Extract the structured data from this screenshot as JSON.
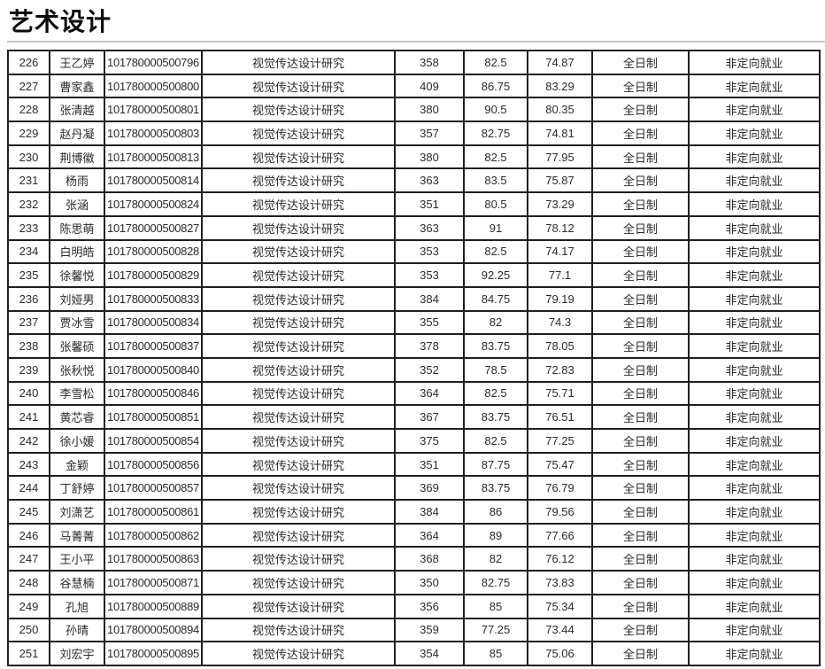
{
  "page": {
    "title": "艺术设计"
  },
  "colors": {
    "table_border": "#1f1f1f",
    "text": "#2b2b2b",
    "divider": "#c9c9c9",
    "background": "#ffffff"
  },
  "table": {
    "rows": [
      {
        "no": "226",
        "name": "王乙婷",
        "exam_id": "101780000500796",
        "direction": "视觉传达设计研究",
        "score1": "358",
        "score2": "82.5",
        "score3": "74.87",
        "study_mode": "全日制",
        "employment": "非定向就业"
      },
      {
        "no": "227",
        "name": "曹家鑫",
        "exam_id": "101780000500800",
        "direction": "视觉传达设计研究",
        "score1": "409",
        "score2": "86.75",
        "score3": "83.29",
        "study_mode": "全日制",
        "employment": "非定向就业"
      },
      {
        "no": "228",
        "name": "张清越",
        "exam_id": "101780000500801",
        "direction": "视觉传达设计研究",
        "score1": "380",
        "score2": "90.5",
        "score3": "80.35",
        "study_mode": "全日制",
        "employment": "非定向就业"
      },
      {
        "no": "229",
        "name": "赵丹凝",
        "exam_id": "101780000500803",
        "direction": "视觉传达设计研究",
        "score1": "357",
        "score2": "82.75",
        "score3": "74.81",
        "study_mode": "全日制",
        "employment": "非定向就业"
      },
      {
        "no": "230",
        "name": "荆博徽",
        "exam_id": "101780000500813",
        "direction": "视觉传达设计研究",
        "score1": "380",
        "score2": "82.5",
        "score3": "77.95",
        "study_mode": "全日制",
        "employment": "非定向就业"
      },
      {
        "no": "231",
        "name": "杨雨",
        "exam_id": "101780000500814",
        "direction": "视觉传达设计研究",
        "score1": "363",
        "score2": "83.5",
        "score3": "75.87",
        "study_mode": "全日制",
        "employment": "非定向就业"
      },
      {
        "no": "232",
        "name": "张涵",
        "exam_id": "101780000500824",
        "direction": "视觉传达设计研究",
        "score1": "351",
        "score2": "80.5",
        "score3": "73.29",
        "study_mode": "全日制",
        "employment": "非定向就业"
      },
      {
        "no": "233",
        "name": "陈思萌",
        "exam_id": "101780000500827",
        "direction": "视觉传达设计研究",
        "score1": "363",
        "score2": "91",
        "score3": "78.12",
        "study_mode": "全日制",
        "employment": "非定向就业"
      },
      {
        "no": "234",
        "name": "白明皓",
        "exam_id": "101780000500828",
        "direction": "视觉传达设计研究",
        "score1": "353",
        "score2": "82.5",
        "score3": "74.17",
        "study_mode": "全日制",
        "employment": "非定向就业"
      },
      {
        "no": "235",
        "name": "徐馨悦",
        "exam_id": "101780000500829",
        "direction": "视觉传达设计研究",
        "score1": "353",
        "score2": "92.25",
        "score3": "77.1",
        "study_mode": "全日制",
        "employment": "非定向就业"
      },
      {
        "no": "236",
        "name": "刘娅男",
        "exam_id": "101780000500833",
        "direction": "视觉传达设计研究",
        "score1": "384",
        "score2": "84.75",
        "score3": "79.19",
        "study_mode": "全日制",
        "employment": "非定向就业"
      },
      {
        "no": "237",
        "name": "贾冰雪",
        "exam_id": "101780000500834",
        "direction": "视觉传达设计研究",
        "score1": "355",
        "score2": "82",
        "score3": "74.3",
        "study_mode": "全日制",
        "employment": "非定向就业"
      },
      {
        "no": "238",
        "name": "张馨硕",
        "exam_id": "101780000500837",
        "direction": "视觉传达设计研究",
        "score1": "378",
        "score2": "83.75",
        "score3": "78.05",
        "study_mode": "全日制",
        "employment": "非定向就业"
      },
      {
        "no": "239",
        "name": "张秋悦",
        "exam_id": "101780000500840",
        "direction": "视觉传达设计研究",
        "score1": "352",
        "score2": "78.5",
        "score3": "72.83",
        "study_mode": "全日制",
        "employment": "非定向就业"
      },
      {
        "no": "240",
        "name": "李雪松",
        "exam_id": "101780000500846",
        "direction": "视觉传达设计研究",
        "score1": "364",
        "score2": "82.5",
        "score3": "75.71",
        "study_mode": "全日制",
        "employment": "非定向就业"
      },
      {
        "no": "241",
        "name": "黄芯睿",
        "exam_id": "101780000500851",
        "direction": "视觉传达设计研究",
        "score1": "367",
        "score2": "83.75",
        "score3": "76.51",
        "study_mode": "全日制",
        "employment": "非定向就业"
      },
      {
        "no": "242",
        "name": "徐小媛",
        "exam_id": "101780000500854",
        "direction": "视觉传达设计研究",
        "score1": "375",
        "score2": "82.5",
        "score3": "77.25",
        "study_mode": "全日制",
        "employment": "非定向就业"
      },
      {
        "no": "243",
        "name": "金颖",
        "exam_id": "101780000500856",
        "direction": "视觉传达设计研究",
        "score1": "351",
        "score2": "87.75",
        "score3": "75.47",
        "study_mode": "全日制",
        "employment": "非定向就业"
      },
      {
        "no": "244",
        "name": "丁舒婷",
        "exam_id": "101780000500857",
        "direction": "视觉传达设计研究",
        "score1": "369",
        "score2": "83.75",
        "score3": "76.79",
        "study_mode": "全日制",
        "employment": "非定向就业"
      },
      {
        "no": "245",
        "name": "刘潇艺",
        "exam_id": "101780000500861",
        "direction": "视觉传达设计研究",
        "score1": "384",
        "score2": "86",
        "score3": "79.56",
        "study_mode": "全日制",
        "employment": "非定向就业"
      },
      {
        "no": "246",
        "name": "马菁菁",
        "exam_id": "101780000500862",
        "direction": "视觉传达设计研究",
        "score1": "364",
        "score2": "89",
        "score3": "77.66",
        "study_mode": "全日制",
        "employment": "非定向就业"
      },
      {
        "no": "247",
        "name": "王小平",
        "exam_id": "101780000500863",
        "direction": "视觉传达设计研究",
        "score1": "368",
        "score2": "82",
        "score3": "76.12",
        "study_mode": "全日制",
        "employment": "非定向就业"
      },
      {
        "no": "248",
        "name": "谷慧楠",
        "exam_id": "101780000500871",
        "direction": "视觉传达设计研究",
        "score1": "350",
        "score2": "82.75",
        "score3": "73.83",
        "study_mode": "全日制",
        "employment": "非定向就业"
      },
      {
        "no": "249",
        "name": "孔旭",
        "exam_id": "101780000500889",
        "direction": "视觉传达设计研究",
        "score1": "356",
        "score2": "85",
        "score3": "75.34",
        "study_mode": "全日制",
        "employment": "非定向就业"
      },
      {
        "no": "250",
        "name": "孙晴",
        "exam_id": "101780000500894",
        "direction": "视觉传达设计研究",
        "score1": "359",
        "score2": "77.25",
        "score3": "73.44",
        "study_mode": "全日制",
        "employment": "非定向就业"
      },
      {
        "no": "251",
        "name": "刘宏宇",
        "exam_id": "101780000500895",
        "direction": "视觉传达设计研究",
        "score1": "354",
        "score2": "85",
        "score3": "75.06",
        "study_mode": "全日制",
        "employment": "非定向就业"
      }
    ]
  }
}
